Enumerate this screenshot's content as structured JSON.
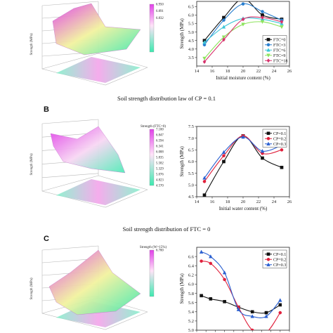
{
  "panels": [
    {
      "letter": "",
      "caption": "Soil strength distribution law of CP = 0.1",
      "surface": {
        "zlabel": "Strength (MPa)",
        "colorbar_title": "",
        "colorbar_ticks": [
          "6.950",
          "6.891",
          "6.832",
          "",
          "",
          "",
          "",
          ""
        ],
        "colors": [
          "#e040e8",
          "#ffe3f8",
          "#3ee9b0"
        ]
      },
      "chart_data": {
        "type": "line",
        "xlabel": "Initial moisture content (%)",
        "ylabel": "Strength (MPa)",
        "xlim": [
          14,
          26
        ],
        "ylim": [
          3.0,
          6.8
        ],
        "xticks": [
          14,
          16,
          18,
          20,
          22,
          24,
          26
        ],
        "yticks": [
          3.5,
          4.0,
          4.5,
          5.0,
          5.5,
          6.0,
          6.5
        ],
        "legend_position": "bottom-right",
        "series": [
          {
            "name": "FTC=0",
            "color": "#111111",
            "marker": "square",
            "x": [
              15,
              17.5,
              20,
              22.5,
              25
            ],
            "y": [
              4.5,
              5.85,
              6.95,
              6.0,
              5.75
            ]
          },
          {
            "name": "FTC=3",
            "color": "#2a7fcf",
            "marker": "circle",
            "x": [
              15,
              17.5,
              20,
              22.5,
              25
            ],
            "y": [
              4.25,
              5.7,
              6.65,
              6.2,
              5.7
            ]
          },
          {
            "name": "FTC=6",
            "color": "#3cc6d8",
            "marker": "triangle",
            "x": [
              15,
              17.5,
              20,
              22.5,
              25
            ],
            "y": [
              4.4,
              5.3,
              5.8,
              5.75,
              5.5
            ]
          },
          {
            "name": "FTC=9",
            "color": "#8de35c",
            "marker": "triangle-down",
            "x": [
              15,
              17.5,
              20,
              22.5,
              25
            ],
            "y": [
              3.45,
              4.7,
              5.45,
              5.6,
              5.3
            ]
          },
          {
            "name": "FTC=18",
            "color": "#d6336c",
            "marker": "diamond",
            "x": [
              15,
              17.5,
              20,
              22.5,
              25
            ],
            "y": [
              3.25,
              4.55,
              5.75,
              5.85,
              5.6
            ]
          }
        ]
      }
    },
    {
      "letter": "B",
      "caption": "Soil strength distribution of FTC = 0",
      "surface": {
        "zlabel": "Strength (MPa)",
        "colorbar_title": "Strength (FTC=0)",
        "colorbar_ticks": [
          "7.100",
          "6.847",
          "6.594",
          "6.341",
          "6.088",
          "5.835",
          "5.582",
          "5.329",
          "5.076",
          "4.823",
          "4.570"
        ],
        "colors": [
          "#e040e8",
          "#ffe3f8",
          "#3ee9b0"
        ]
      },
      "chart_data": {
        "type": "line",
        "xlabel": "Initial water content (%)",
        "ylabel": "Strength (MPa)",
        "xlim": [
          14,
          26
        ],
        "ylim": [
          4.5,
          7.5
        ],
        "xticks": [
          14,
          16,
          18,
          20,
          22,
          24,
          26
        ],
        "yticks": [
          4.5,
          5.0,
          5.5,
          6.0,
          6.5,
          7.0,
          7.5
        ],
        "legend_position": "top-right",
        "series": [
          {
            "name": "CP=0.1",
            "color": "#111111",
            "marker": "square",
            "x": [
              15,
              17.5,
              20,
              22.5,
              25
            ],
            "y": [
              4.57,
              6.0,
              7.1,
              6.15,
              5.75
            ]
          },
          {
            "name": "CP=0.2",
            "color": "#e0203c",
            "marker": "circle",
            "x": [
              15,
              17.5,
              20,
              22.5,
              25
            ],
            "y": [
              5.15,
              6.25,
              7.1,
              6.35,
              6.5
            ]
          },
          {
            "name": "CP=0.3",
            "color": "#2a5fd0",
            "marker": "triangle",
            "x": [
              15,
              17.5,
              20,
              22.5,
              25
            ],
            "y": [
              5.3,
              6.4,
              7.05,
              6.45,
              6.7
            ]
          }
        ]
      }
    },
    {
      "letter": "C",
      "caption": "",
      "surface": {
        "zlabel": "Strength (MPa)",
        "colorbar_title": "Strength (W=15%)",
        "colorbar_ticks": [
          "6.700",
          "",
          "",
          "",
          "",
          "",
          "",
          ""
        ],
        "colors": [
          "#e040e8",
          "#ffe3f8",
          "#3ee9b0"
        ]
      },
      "chart_data": {
        "type": "line",
        "xlabel": "",
        "ylabel": "Strength (MPa)",
        "xlim": [
          0,
          20
        ],
        "ylim": [
          5.0,
          6.8
        ],
        "xticks": [
          0,
          2,
          4,
          6,
          8,
          10,
          12,
          14,
          16,
          18,
          20
        ],
        "yticks": [
          5.0,
          5.2,
          5.4,
          5.6,
          5.8,
          6.0,
          6.2,
          6.4,
          6.6
        ],
        "legend_position": "top-right",
        "series": [
          {
            "name": "CP=0.1",
            "color": "#111111",
            "marker": "square",
            "x": [
              1,
              3,
              6,
              9,
              12,
              15,
              18
            ],
            "y": [
              5.75,
              5.68,
              5.62,
              5.5,
              5.4,
              5.38,
              5.55
            ]
          },
          {
            "name": "CP=0.2",
            "color": "#e0203c",
            "marker": "circle",
            "x": [
              1,
              3,
              6,
              9,
              12,
              15,
              18
            ],
            "y": [
              6.5,
              6.45,
              6.1,
              5.5,
              5.0,
              4.95,
              5.38
            ]
          },
          {
            "name": "CP=0.3",
            "color": "#2a5fd0",
            "marker": "triangle",
            "x": [
              1,
              3,
              6,
              9,
              12,
              15,
              18
            ],
            "y": [
              6.7,
              6.6,
              6.25,
              5.45,
              5.3,
              5.3,
              5.65
            ]
          }
        ]
      }
    }
  ]
}
